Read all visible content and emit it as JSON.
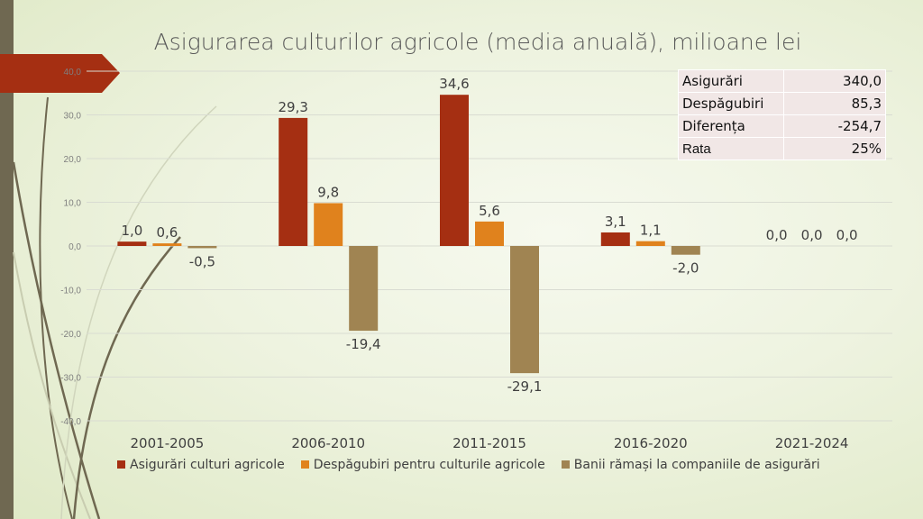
{
  "chart_data": {
    "type": "bar",
    "title": "Asigurarea culturilor agricole (media anuală), milioane lei",
    "categories": [
      "2001-2005",
      "2006-2010",
      "2011-2015",
      "2016-2020",
      "2021-2024"
    ],
    "series": [
      {
        "name": "Asigurări culturi agricole",
        "color": "#a52f12",
        "values": [
          1.0,
          29.3,
          34.6,
          3.1,
          0.0
        ],
        "labels": [
          "1,0",
          "29,3",
          "34,6",
          "3,1",
          "0,0"
        ]
      },
      {
        "name": "Despăgubiri pentru culturile agricole",
        "color": "#e0821d",
        "values": [
          0.6,
          9.8,
          5.6,
          1.1,
          0.0
        ],
        "labels": [
          "0,6",
          "9,8",
          "5,6",
          "1,1",
          "0,0"
        ]
      },
      {
        "name": "Banii rămași la companiile de asigurări",
        "color": "#a08452",
        "values": [
          -0.5,
          -19.4,
          -29.1,
          -2.0,
          0.0
        ],
        "labels": [
          "-0,5",
          "-19,4",
          "-29,1",
          "-2,0",
          "0,0"
        ]
      }
    ],
    "ylim": [
      -40,
      40
    ],
    "yticks": [
      40,
      30,
      20,
      10,
      0,
      -10,
      -20,
      -30,
      -40
    ],
    "ytick_labels": [
      "40,0",
      "30,0",
      "20,0",
      "10,0",
      "0,0",
      "-10,0",
      "-20,0",
      "-30,0",
      "-40,0"
    ],
    "grid": true,
    "legend": "bottom"
  },
  "summary_table": [
    {
      "label": "Asigurări",
      "value": "340,0"
    },
    {
      "label": "Despăgubiri",
      "value": "85,3"
    },
    {
      "label": "Diferența",
      "value": "-254,7"
    },
    {
      "label": "Rata",
      "value": "25%"
    }
  ]
}
